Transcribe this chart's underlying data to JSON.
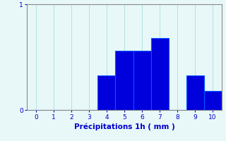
{
  "categories": [
    0,
    1,
    2,
    3,
    4,
    5,
    6,
    7,
    8,
    9,
    10
  ],
  "values": [
    0,
    0,
    0,
    0,
    0.33,
    0.56,
    0.56,
    0.68,
    0,
    0.33,
    0.18
  ],
  "bar_color": "#0000dd",
  "bar_edge_color": "#0055ff",
  "background_color": "#e8f8f8",
  "xlabel": "Précipitations 1h ( mm )",
  "xlim": [
    -0.5,
    10.5
  ],
  "ylim": [
    0,
    1.0
  ],
  "yticks": [
    0,
    1
  ],
  "xticks": [
    0,
    1,
    2,
    3,
    4,
    5,
    6,
    7,
    8,
    9,
    10
  ],
  "grid_color": "#aadddd",
  "tick_color": "#0000cc",
  "label_color": "#0000cc",
  "bar_width": 1.0,
  "figsize": [
    3.2,
    2.0
  ],
  "dpi": 100
}
